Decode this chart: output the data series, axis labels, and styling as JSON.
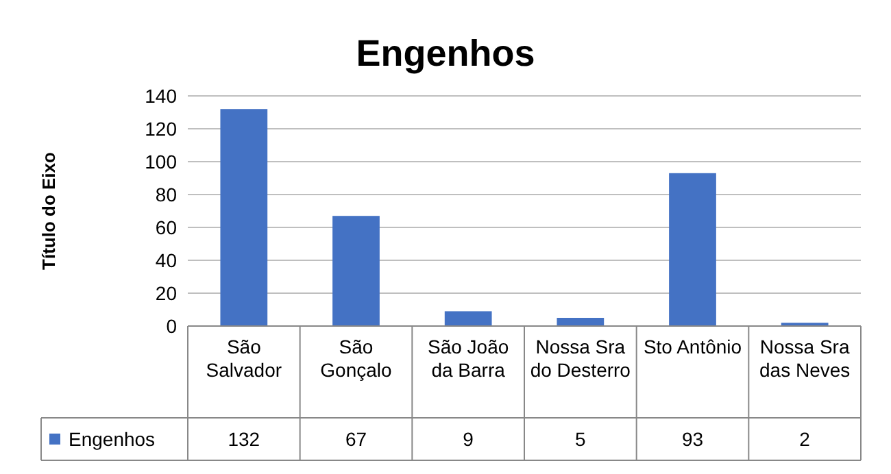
{
  "chart_data": {
    "type": "bar",
    "title": "Engenhos",
    "ylabel": "Título do Eixo",
    "categories": [
      "São Salvador",
      "São Gonçalo",
      "São João da Barra",
      "Nossa Sra do Desterro",
      "Sto Antônio",
      "Nossa Sra das Neves"
    ],
    "series": [
      {
        "name": "Engenhos",
        "color": "#4472c4",
        "values": [
          132,
          67,
          9,
          5,
          93,
          2
        ]
      }
    ],
    "ylim": [
      0,
      140
    ],
    "yticks": [
      0,
      20,
      40,
      60,
      80,
      100,
      120,
      140
    ],
    "grid": "y",
    "data_labels": true,
    "legend": "bottom left"
  }
}
